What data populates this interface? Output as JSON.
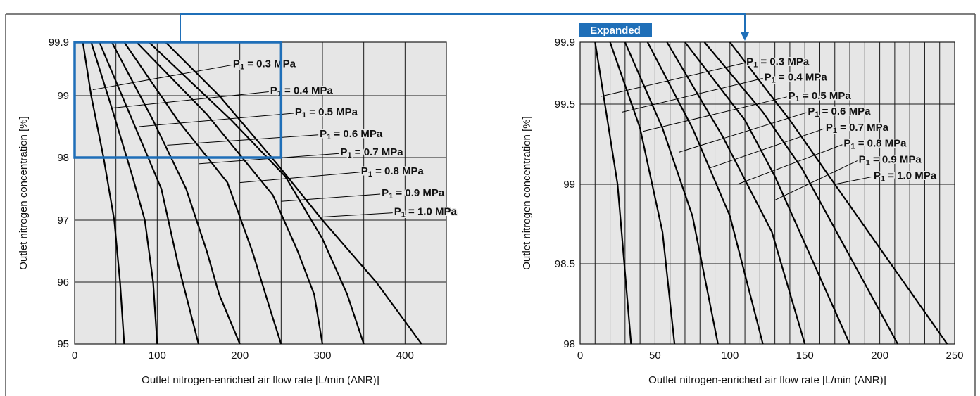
{
  "colors": {
    "accent": "#1f6fb8",
    "plot_bg": "#e6e6e6",
    "curve": "#000000"
  },
  "expanded_badge": "Expanded",
  "chart_data": [
    {
      "type": "line",
      "xlabel": "Outlet nitrogen-enriched air flow rate [L/min (ANR)]",
      "ylabel": "Outlet nitrogen concentration [%]",
      "xlim": [
        0,
        450
      ],
      "xticks": [
        0,
        100,
        200,
        300,
        400
      ],
      "xgrid": [
        50,
        100,
        150,
        200,
        250,
        300,
        350,
        400
      ],
      "yticks": [
        "95",
        "96",
        "97",
        "98",
        "99",
        "99.9"
      ],
      "ylevels": [
        95,
        96,
        97,
        98,
        99,
        99.9
      ],
      "grid": true,
      "zoom_region": {
        "x": [
          0,
          250
        ],
        "y": [
          98,
          99.9
        ]
      },
      "series": [
        {
          "name": "P1 = 0.3 MPa",
          "points": [
            [
              10,
              99.9
            ],
            [
              20,
              99
            ],
            [
              35,
              98
            ],
            [
              48,
              97
            ],
            [
              55,
              96
            ],
            [
              60,
              95
            ]
          ]
        },
        {
          "name": "P1 = 0.4 MPa",
          "points": [
            [
              20,
              99.9
            ],
            [
              45,
              98.8
            ],
            [
              70,
              97.7
            ],
            [
              85,
              97
            ],
            [
              95,
              96
            ],
            [
              100,
              95
            ]
          ]
        },
        {
          "name": "P1 = 0.5 MPa",
          "points": [
            [
              30,
              99.9
            ],
            [
              70,
              98.6
            ],
            [
              105,
              97.5
            ],
            [
              125,
              96.3
            ],
            [
              150,
              95
            ]
          ]
        },
        {
          "name": "P1 = 0.6 MPa",
          "points": [
            [
              45,
              99.9
            ],
            [
              95,
              98.6
            ],
            [
              135,
              97.5
            ],
            [
              160,
              96.5
            ],
            [
              175,
              95.8
            ],
            [
              200,
              95
            ]
          ]
        },
        {
          "name": "P1 = 0.7 MPa",
          "points": [
            [
              60,
              99.9
            ],
            [
              125,
              98.6
            ],
            [
              185,
              97.6
            ],
            [
              215,
              96.5
            ],
            [
              238,
              95.5
            ],
            [
              250,
              95
            ]
          ]
        },
        {
          "name": "P1 = 0.8 MPa",
          "points": [
            [
              75,
              99.9
            ],
            [
              160,
              98.7
            ],
            [
              240,
              97.4
            ],
            [
              270,
              96.5
            ],
            [
              290,
              95.8
            ],
            [
              300,
              95
            ]
          ]
        },
        {
          "name": "P1 = 0.9 MPa",
          "points": [
            [
              90,
              99.9
            ],
            [
              190,
              98.6
            ],
            [
              255,
              97.7
            ],
            [
              300,
              96.7
            ],
            [
              330,
              95.8
            ],
            [
              350,
              95
            ]
          ]
        },
        {
          "name": "P1 = 1.0 MPa",
          "points": [
            [
              110,
              99.9
            ],
            [
              175,
              99
            ],
            [
              245,
              97.9
            ],
            [
              300,
              97
            ],
            [
              365,
              96
            ],
            [
              420,
              95
            ]
          ]
        }
      ],
      "label_positions": [
        [
          190,
          99.55
        ],
        [
          235,
          99.1
        ],
        [
          265,
          98.75
        ],
        [
          295,
          98.4
        ],
        [
          320,
          98.1
        ],
        [
          345,
          97.8
        ],
        [
          370,
          97.45
        ],
        [
          385,
          97.15
        ]
      ],
      "label_targets": [
        [
          22,
          99.1
        ],
        [
          45,
          98.8
        ],
        [
          78,
          98.5
        ],
        [
          112,
          98.2
        ],
        [
          150,
          97.9
        ],
        [
          200,
          97.6
        ],
        [
          250,
          97.3
        ],
        [
          300,
          97.05
        ]
      ]
    },
    {
      "type": "line",
      "xlabel": "Outlet nitrogen-enriched air flow rate [L/min (ANR)]",
      "ylabel": "Outlet nitrogen concentration [%]",
      "xlim": [
        0,
        250
      ],
      "xticks": [
        0,
        50,
        100,
        150,
        200,
        250
      ],
      "xgrid_step": 10,
      "yticks": [
        "98",
        "98.5",
        "99",
        "99.5",
        "99.9"
      ],
      "ylevels": [
        98,
        98.5,
        99,
        99.5,
        99.9
      ],
      "grid": true,
      "series": [
        {
          "name": "P1 = 0.3 MPa",
          "points": [
            [
              10,
              99.9
            ],
            [
              25,
              99
            ],
            [
              34,
              98
            ]
          ]
        },
        {
          "name": "P1 = 0.4 MPa",
          "points": [
            [
              20,
              99.9
            ],
            [
              40,
              99.35
            ],
            [
              55,
              98.7
            ],
            [
              63,
              98
            ]
          ]
        },
        {
          "name": "P1 = 0.5 MPa",
          "points": [
            [
              30,
              99.9
            ],
            [
              55,
              99.35
            ],
            [
              75,
              98.8
            ],
            [
              92,
              98
            ]
          ]
        },
        {
          "name": "P1 = 0.6 MPa",
          "points": [
            [
              45,
              99.9
            ],
            [
              75,
              99.35
            ],
            [
              100,
              98.8
            ],
            [
              122,
              98
            ]
          ]
        },
        {
          "name": "P1 = 0.7 MPa",
          "points": [
            [
              58,
              99.9
            ],
            [
              95,
              99.3
            ],
            [
              128,
              98.7
            ],
            [
              150,
              98
            ]
          ]
        },
        {
          "name": "P1 = 0.8 MPa",
          "points": [
            [
              70,
              99.9
            ],
            [
              110,
              99.4
            ],
            [
              130,
              99.05
            ],
            [
              180,
              98
            ]
          ]
        },
        {
          "name": "P1 = 0.9 MPa",
          "points": [
            [
              83,
              99.9
            ],
            [
              122,
              99.45
            ],
            [
              148,
              99.1
            ],
            [
              212,
              98
            ]
          ]
        },
        {
          "name": "P1 = 1.0 MPa",
          "points": [
            [
              100,
              99.9
            ],
            [
              140,
              99.4
            ],
            [
              170,
              99.0
            ],
            [
              245,
              98
            ]
          ]
        }
      ],
      "label_positions": [
        [
          110,
          99.78
        ],
        [
          122,
          99.68
        ],
        [
          138,
          99.56
        ],
        [
          151,
          99.46
        ],
        [
          163,
          99.36
        ],
        [
          175,
          99.26
        ],
        [
          185,
          99.16
        ],
        [
          195,
          99.06
        ]
      ],
      "label_targets": [
        [
          14,
          99.55
        ],
        [
          28,
          99.45
        ],
        [
          42,
          99.33
        ],
        [
          66,
          99.2
        ],
        [
          86,
          99.1
        ],
        [
          105,
          99.0
        ],
        [
          130,
          98.9
        ],
        [
          170,
          99.0
        ]
      ]
    }
  ]
}
